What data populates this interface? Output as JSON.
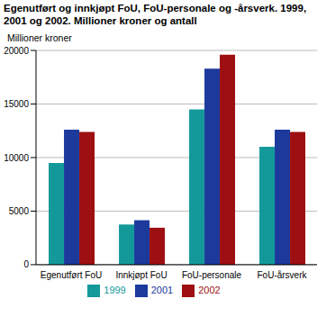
{
  "chart_data": {
    "type": "bar",
    "title": "Egenutført og innkjøpt FoU, FoU-personale og -årsverk. 1999, 2001 og 2002. Millioner kroner og antall",
    "y_label": "Millioner kroner",
    "categories": [
      "Egenutført FoU",
      "Innkjøpt FoU",
      "FoU-personale",
      "FoU-årsverk"
    ],
    "series": [
      {
        "name": "1999",
        "color": "#14999a",
        "values": [
          9500,
          3750,
          14500,
          11000
        ]
      },
      {
        "name": "2001",
        "color": "#1c399c",
        "values": [
          12600,
          4150,
          18300,
          12600
        ]
      },
      {
        "name": "2002",
        "color": "#9e0f12",
        "values": [
          12400,
          3450,
          19600,
          12400
        ]
      }
    ],
    "ylim": [
      0,
      20000
    ],
    "yticks": [
      0,
      5000,
      10000,
      15000,
      20000
    ],
    "grid": true,
    "legend": "bottom"
  }
}
